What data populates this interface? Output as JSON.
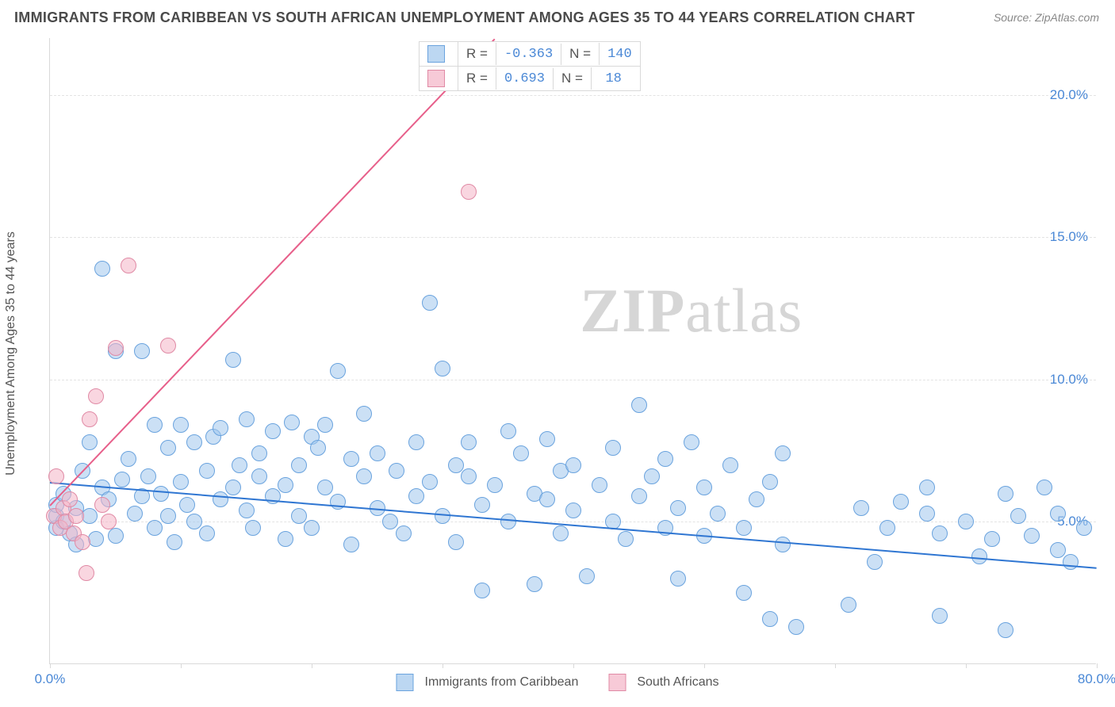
{
  "title": "IMMIGRANTS FROM CARIBBEAN VS SOUTH AFRICAN UNEMPLOYMENT AMONG AGES 35 TO 44 YEARS CORRELATION CHART",
  "source": "Source: ZipAtlas.com",
  "watermark_bold": "ZIP",
  "watermark_light": "atlas",
  "chart": {
    "type": "scatter",
    "y_label": "Unemployment Among Ages 35 to 44 years",
    "xlim": [
      0,
      80
    ],
    "ylim": [
      0,
      22
    ],
    "x_ticks": [
      0,
      80
    ],
    "x_tick_labels": [
      "0.0%",
      "80.0%"
    ],
    "y_ticks": [
      5,
      10,
      15,
      20
    ],
    "y_tick_labels": [
      "5.0%",
      "10.0%",
      "15.0%",
      "20.0%"
    ],
    "grid_color": "#e3e3e3",
    "background_color": "#ffffff",
    "axis_color": "#d9d9d9",
    "tick_font_color": "#4a88d6",
    "marker_radius": 10,
    "series": [
      {
        "name": "Immigrants from Caribbean",
        "color_fill": "rgba(160,198,237,0.55)",
        "color_stroke": "#6aa3de",
        "R": "-0.363",
        "N": "140",
        "regression": {
          "x1": 0,
          "y1": 6.4,
          "x2": 80,
          "y2": 3.4,
          "color": "#2f76d2",
          "width": 2
        },
        "points": [
          [
            0.5,
            4.8
          ],
          [
            0.5,
            5.2
          ],
          [
            0.5,
            5.6
          ],
          [
            1,
            5
          ],
          [
            1,
            6
          ],
          [
            1.5,
            4.6
          ],
          [
            2,
            5.5
          ],
          [
            2,
            4.2
          ],
          [
            2.5,
            6.8
          ],
          [
            3,
            5.2
          ],
          [
            3,
            7.8
          ],
          [
            3.5,
            4.4
          ],
          [
            4,
            6.2
          ],
          [
            4,
            13.9
          ],
          [
            4.5,
            5.8
          ],
          [
            5,
            11
          ],
          [
            5,
            4.5
          ],
          [
            5.5,
            6.5
          ],
          [
            6,
            7.2
          ],
          [
            6.5,
            5.3
          ],
          [
            7,
            11
          ],
          [
            7,
            5.9
          ],
          [
            7.5,
            6.6
          ],
          [
            8,
            4.8
          ],
          [
            8,
            8.4
          ],
          [
            8.5,
            6
          ],
          [
            9,
            7.6
          ],
          [
            9,
            5.2
          ],
          [
            9.5,
            4.3
          ],
          [
            10,
            6.4
          ],
          [
            10,
            8.4
          ],
          [
            10.5,
            5.6
          ],
          [
            11,
            7.8
          ],
          [
            11,
            5
          ],
          [
            12,
            6.8
          ],
          [
            12,
            4.6
          ],
          [
            12.5,
            8
          ],
          [
            13,
            5.8
          ],
          [
            13,
            8.3
          ],
          [
            14,
            10.7
          ],
          [
            14,
            6.2
          ],
          [
            14.5,
            7
          ],
          [
            15,
            5.4
          ],
          [
            15,
            8.6
          ],
          [
            15.5,
            4.8
          ],
          [
            16,
            6.6
          ],
          [
            16,
            7.4
          ],
          [
            17,
            5.9
          ],
          [
            17,
            8.2
          ],
          [
            18,
            6.3
          ],
          [
            18,
            4.4
          ],
          [
            18.5,
            8.5
          ],
          [
            19,
            7
          ],
          [
            19,
            5.2
          ],
          [
            20,
            8
          ],
          [
            20,
            4.8
          ],
          [
            20.5,
            7.6
          ],
          [
            21,
            6.2
          ],
          [
            21,
            8.4
          ],
          [
            22,
            5.7
          ],
          [
            22,
            10.3
          ],
          [
            23,
            7.2
          ],
          [
            23,
            4.2
          ],
          [
            24,
            6.6
          ],
          [
            24,
            8.8
          ],
          [
            25,
            5.5
          ],
          [
            25,
            7.4
          ],
          [
            26,
            5
          ],
          [
            26.5,
            6.8
          ],
          [
            27,
            4.6
          ],
          [
            28,
            7.8
          ],
          [
            28,
            5.9
          ],
          [
            29,
            12.7
          ],
          [
            29,
            6.4
          ],
          [
            30,
            5.2
          ],
          [
            30,
            10.4
          ],
          [
            31,
            7
          ],
          [
            31,
            4.3
          ],
          [
            32,
            6.6
          ],
          [
            32,
            7.8
          ],
          [
            33,
            5.6
          ],
          [
            33,
            2.6
          ],
          [
            34,
            6.3
          ],
          [
            35,
            8.2
          ],
          [
            35,
            5
          ],
          [
            36,
            7.4
          ],
          [
            37,
            6
          ],
          [
            37,
            2.8
          ],
          [
            38,
            5.8
          ],
          [
            38,
            7.9
          ],
          [
            39,
            4.6
          ],
          [
            39,
            6.8
          ],
          [
            40,
            5.4
          ],
          [
            40,
            7
          ],
          [
            41,
            3.1
          ],
          [
            42,
            6.3
          ],
          [
            43,
            5
          ],
          [
            43,
            7.6
          ],
          [
            44,
            4.4
          ],
          [
            45,
            5.9
          ],
          [
            45,
            9.1
          ],
          [
            46,
            6.6
          ],
          [
            47,
            4.8
          ],
          [
            47,
            7.2
          ],
          [
            48,
            3
          ],
          [
            48,
            5.5
          ],
          [
            49,
            7.8
          ],
          [
            50,
            4.5
          ],
          [
            50,
            6.2
          ],
          [
            51,
            5.3
          ],
          [
            52,
            7
          ],
          [
            53,
            2.5
          ],
          [
            53,
            4.8
          ],
          [
            54,
            5.8
          ],
          [
            55,
            1.6
          ],
          [
            55,
            6.4
          ],
          [
            56,
            4.2
          ],
          [
            56,
            7.4
          ],
          [
            57,
            1.3
          ],
          [
            61,
            2.1
          ],
          [
            62,
            5.5
          ],
          [
            63,
            3.6
          ],
          [
            64,
            4.8
          ],
          [
            65,
            5.7
          ],
          [
            67,
            5.3
          ],
          [
            67,
            6.2
          ],
          [
            68,
            1.7
          ],
          [
            68,
            4.6
          ],
          [
            70,
            5
          ],
          [
            71,
            3.8
          ],
          [
            72,
            4.4
          ],
          [
            73,
            6
          ],
          [
            73,
            1.2
          ],
          [
            74,
            5.2
          ],
          [
            75,
            4.5
          ],
          [
            76,
            6.2
          ],
          [
            77,
            5.3
          ],
          [
            77,
            4
          ],
          [
            78,
            3.6
          ],
          [
            79,
            4.8
          ]
        ]
      },
      {
        "name": "South Africans",
        "color_fill": "rgba(244,180,198,0.55)",
        "color_stroke": "#e08aa5",
        "R": "0.693",
        "N": "18",
        "regression": {
          "x1": 0,
          "y1": 5.6,
          "x2": 34,
          "y2": 22,
          "color": "#e75f8a",
          "width": 2
        },
        "points": [
          [
            0.3,
            5.2
          ],
          [
            0.5,
            6.6
          ],
          [
            0.8,
            4.8
          ],
          [
            1,
            5.5
          ],
          [
            1.2,
            5
          ],
          [
            1.5,
            5.8
          ],
          [
            1.8,
            4.6
          ],
          [
            2,
            5.2
          ],
          [
            2.5,
            4.3
          ],
          [
            2.8,
            3.2
          ],
          [
            3,
            8.6
          ],
          [
            3.5,
            9.4
          ],
          [
            4,
            5.6
          ],
          [
            4.5,
            5
          ],
          [
            5,
            11.1
          ],
          [
            6,
            14
          ],
          [
            9,
            11.2
          ],
          [
            32,
            16.6
          ]
        ]
      }
    ],
    "bottom_legend": [
      {
        "swatch": "blue",
        "label": "Immigrants from Caribbean"
      },
      {
        "swatch": "pink",
        "label": "South Africans"
      }
    ],
    "stat_legend": {
      "rows": [
        {
          "swatch": "blue",
          "R_label": "R =",
          "R": "-0.363",
          "N_label": "N =",
          "N": "140"
        },
        {
          "swatch": "pink",
          "R_label": "R =",
          "R": "0.693",
          "N_label": "N =",
          "N": "18"
        }
      ]
    }
  }
}
